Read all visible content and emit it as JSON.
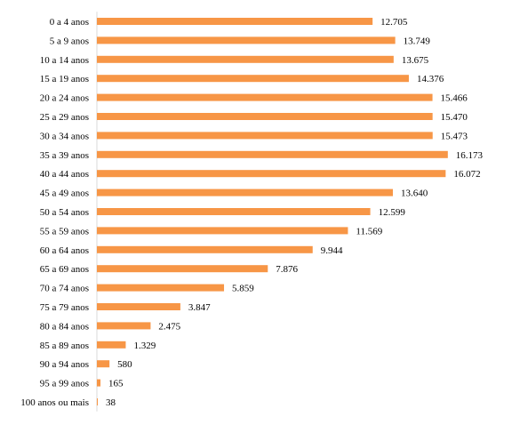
{
  "chart_data": {
    "type": "bar",
    "orientation": "horizontal",
    "title": "",
    "xlabel": "",
    "ylabel": "",
    "bar_color": "#f79646",
    "grid": false,
    "legend": "none",
    "xlim": [
      0,
      17000
    ],
    "categories": [
      "0 a 4 anos",
      "5 a 9 anos",
      "10 a 14 anos",
      "15 a 19 anos",
      "20 a 24 anos",
      "25 a 29 anos",
      "30 a 34 anos",
      "35 a 39 anos",
      "40 a 44 anos",
      "45 a 49 anos",
      "50 a 54 anos",
      "55 a 59 anos",
      "60 a 64 anos",
      "65 a 69 anos",
      "70 a 74 anos",
      "75 a 79 anos",
      "80 a 84 anos",
      "85 a 89 anos",
      "90 a 94 anos",
      "95 a 99 anos",
      "100 anos ou mais"
    ],
    "values": [
      12705,
      13749,
      13675,
      14376,
      15466,
      15470,
      15473,
      16173,
      16072,
      13640,
      12599,
      11569,
      9944,
      7876,
      5859,
      3847,
      2475,
      1329,
      580,
      165,
      38
    ],
    "value_labels": [
      "12.705",
      "13.749",
      "13.675",
      "14.376",
      "15.466",
      "15.470",
      "15.473",
      "16.173",
      "16.072",
      "13.640",
      "12.599",
      "11.569",
      "9.944",
      "7.876",
      "5.859",
      "3.847",
      "2.475",
      "1.329",
      "580",
      "165",
      "38"
    ]
  }
}
